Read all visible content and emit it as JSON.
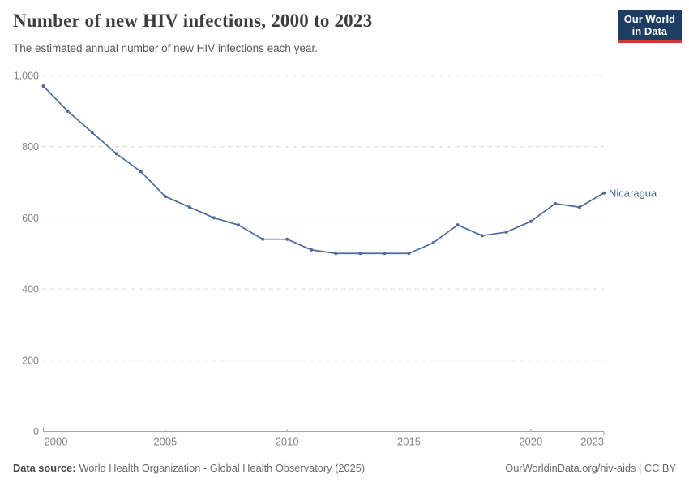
{
  "header": {
    "title": "Number of new HIV infections, 2000 to 2023",
    "subtitle": "The estimated annual number of new HIV infections each year.",
    "logo": {
      "line1": "Our World",
      "line2": "in Data"
    }
  },
  "colors": {
    "accent_line": "#4c6a9c",
    "grid": "#dcdcdc",
    "axis": "#a5a5a5",
    "tick_text": "#858585",
    "title_text": "#3d3d3d",
    "subtitle_text": "#5a5a5a",
    "footer_text": "#6b6b6b",
    "logo_bg": "#1d3d63",
    "logo_accent": "#cb3a2f"
  },
  "chart_data": {
    "type": "line",
    "title": "Number of new HIV infections, 2000 to 2023",
    "xlabel": "",
    "ylabel": "",
    "xlim": [
      2000,
      2023
    ],
    "ylim": [
      0,
      1000
    ],
    "grid": "horizontal-dashed",
    "legend_position": "end-of-line-label",
    "x": [
      2000,
      2001,
      2002,
      2003,
      2004,
      2005,
      2006,
      2007,
      2008,
      2009,
      2010,
      2011,
      2012,
      2013,
      2014,
      2015,
      2016,
      2017,
      2018,
      2019,
      2020,
      2021,
      2022,
      2023
    ],
    "series": [
      {
        "name": "Nicaragua",
        "color": "#4c6a9c",
        "values": [
          970,
          900,
          840,
          780,
          730,
          660,
          630,
          600,
          580,
          540,
          540,
          510,
          500,
          500,
          500,
          500,
          530,
          580,
          550,
          560,
          590,
          640,
          630,
          670
        ]
      }
    ],
    "xticks": [
      2000,
      2005,
      2010,
      2015,
      2020,
      2023
    ],
    "xtick_labels": [
      "2000",
      "2005",
      "2010",
      "2015",
      "2020",
      "2023"
    ],
    "yticks": [
      0,
      200,
      400,
      600,
      800,
      1000
    ],
    "ytick_labels": [
      "0",
      "200",
      "400",
      "600",
      "800",
      "1,000"
    ]
  },
  "footer": {
    "source_label": "Data source:",
    "source_text": "World Health Organization - Global Health Observatory (2025)",
    "link_text": "OurWorldinData.org/hiv-aids | CC BY"
  }
}
